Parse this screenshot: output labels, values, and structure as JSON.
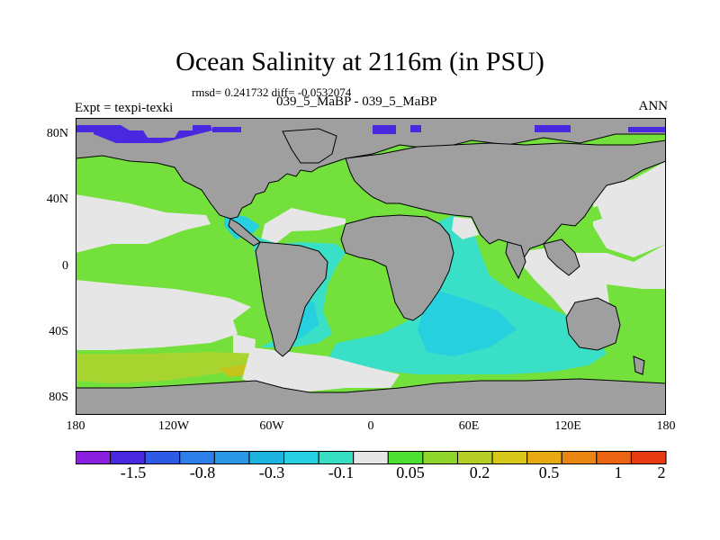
{
  "title": "Ocean Salinity at 2116m (in PSU)",
  "stats": "rmsd= 0.241732 diff= -0.0532074",
  "expt_left": "Expt = texpi-texki",
  "expt_center": "039_5_MaBP - 039_5_MaBP",
  "season": "ANN",
  "axes": {
    "lat_labels": [
      "80N",
      "40N",
      "0",
      "40S",
      "80S"
    ],
    "lon_labels": [
      "180",
      "120W",
      "60W",
      "0",
      "60E",
      "120E",
      "180"
    ]
  },
  "colorbar": {
    "colors": [
      "#8a1fe0",
      "#4a28e0",
      "#2e5ae6",
      "#2d7ee8",
      "#2a98e6",
      "#1eb4e0",
      "#27cfe0",
      "#36dfc2",
      "#e6e6e6",
      "#4de033",
      "#8ed62c",
      "#b5ce25",
      "#d7c819",
      "#e8aa12",
      "#ea8511",
      "#ea6412",
      "#e63a12"
    ],
    "labels": [
      "-1.5",
      "-0.8",
      "-0.3",
      "-0.1",
      "0.05",
      "0.2",
      "0.5",
      "1",
      "2"
    ]
  },
  "legend_colors": {
    "land": "#9f9f9f",
    "near_zero": "#e6e6e6",
    "positive_small": "#74e03c",
    "positive_medium": "#a8d430",
    "positive_high": "#c5c41c",
    "negative_small": "#3adfc7",
    "negative_medium": "#27d0df",
    "negative_strong": "#4a28e0"
  }
}
